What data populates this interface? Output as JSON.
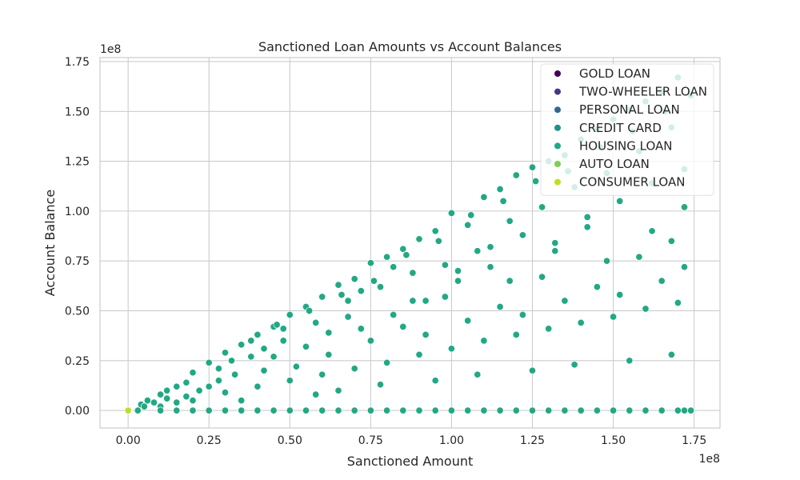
{
  "chart_data": {
    "type": "scatter",
    "title": "Sanctioned Loan Amounts vs Account Balances",
    "xlabel": "Sanctioned Amount",
    "ylabel": "Account Balance",
    "x_offset_text": "1e8",
    "y_offset_text": "1e8",
    "xlim": [
      -0.087,
      1.83
    ],
    "ylim": [
      -0.088,
      1.77
    ],
    "x_ticks": [
      0.0,
      0.25,
      0.5,
      0.75,
      1.0,
      1.25,
      1.5,
      1.75
    ],
    "x_tick_labels": [
      "0.00",
      "0.25",
      "0.50",
      "0.75",
      "1.00",
      "1.25",
      "1.50",
      "1.75"
    ],
    "y_ticks": [
      0.0,
      0.25,
      0.5,
      0.75,
      1.0,
      1.25,
      1.5,
      1.75
    ],
    "y_tick_labels": [
      "0.00",
      "0.25",
      "0.50",
      "0.75",
      "1.00",
      "1.25",
      "1.50",
      "1.75"
    ],
    "grid": true,
    "legend_position": "top-right",
    "point_color": "#ffffff",
    "series": [
      {
        "name": "GOLD LOAN",
        "color": "#440154",
        "points": [
          [
            0.001,
            0.001
          ]
        ]
      },
      {
        "name": "TWO-WHEELER LOAN",
        "color": "#443983",
        "points": [
          [
            0.002,
            0.001
          ]
        ]
      },
      {
        "name": "PERSONAL LOAN",
        "color": "#31688e",
        "points": [
          [
            0.003,
            0.002
          ]
        ]
      },
      {
        "name": "CREDIT CARD",
        "color": "#21918c",
        "points": [
          [
            0.002,
            0.003
          ]
        ]
      },
      {
        "name": "HOUSING LOAN",
        "color": "#22a884",
        "points": [
          [
            0.04,
            0.03
          ],
          [
            0.06,
            0.05
          ],
          [
            0.08,
            0.04
          ],
          [
            0.1,
            0.08
          ],
          [
            0.12,
            0.06
          ],
          [
            0.15,
            0.12
          ],
          [
            0.18,
            0.14
          ],
          [
            0.2,
            0.19
          ],
          [
            0.22,
            0.1
          ],
          [
            0.25,
            0.24
          ],
          [
            0.28,
            0.21
          ],
          [
            0.3,
            0.29
          ],
          [
            0.33,
            0.18
          ],
          [
            0.35,
            0.33
          ],
          [
            0.38,
            0.27
          ],
          [
            0.4,
            0.38
          ],
          [
            0.42,
            0.31
          ],
          [
            0.45,
            0.42
          ],
          [
            0.48,
            0.35
          ],
          [
            0.5,
            0.48
          ],
          [
            0.52,
            0.22
          ],
          [
            0.55,
            0.52
          ],
          [
            0.58,
            0.44
          ],
          [
            0.6,
            0.57
          ],
          [
            0.62,
            0.39
          ],
          [
            0.65,
            0.63
          ],
          [
            0.68,
            0.55
          ],
          [
            0.7,
            0.66
          ],
          [
            0.72,
            0.41
          ],
          [
            0.75,
            0.74
          ],
          [
            0.78,
            0.62
          ],
          [
            0.8,
            0.77
          ],
          [
            0.82,
            0.48
          ],
          [
            0.85,
            0.81
          ],
          [
            0.88,
            0.69
          ],
          [
            0.9,
            0.86
          ],
          [
            0.92,
            0.55
          ],
          [
            0.95,
            0.9
          ],
          [
            0.98,
            0.73
          ],
          [
            1.0,
            0.99
          ],
          [
            1.02,
            0.65
          ],
          [
            1.05,
            0.93
          ],
          [
            1.08,
            0.8
          ],
          [
            1.1,
            1.07
          ],
          [
            1.12,
            0.72
          ],
          [
            1.15,
            1.11
          ],
          [
            1.18,
            0.95
          ],
          [
            1.2,
            1.18
          ],
          [
            1.22,
            0.88
          ],
          [
            1.25,
            1.22
          ],
          [
            1.28,
            1.02
          ],
          [
            1.3,
            1.25
          ],
          [
            1.32,
            0.84
          ],
          [
            1.35,
            1.28
          ],
          [
            1.38,
            1.12
          ],
          [
            1.4,
            1.36
          ],
          [
            1.42,
            0.97
          ],
          [
            1.45,
            1.41
          ],
          [
            1.48,
            1.19
          ],
          [
            1.5,
            1.46
          ],
          [
            1.52,
            1.05
          ],
          [
            1.55,
            1.51
          ],
          [
            1.58,
            1.3
          ],
          [
            1.6,
            1.55
          ],
          [
            1.62,
            1.14
          ],
          [
            1.65,
            1.6
          ],
          [
            1.68,
            1.42
          ],
          [
            1.7,
            1.67
          ],
          [
            1.72,
            1.21
          ],
          [
            1.74,
            1.58
          ],
          [
            0.1,
            0.02
          ],
          [
            0.2,
            0.05
          ],
          [
            0.3,
            0.09
          ],
          [
            0.4,
            0.12
          ],
          [
            0.5,
            0.15
          ],
          [
            0.6,
            0.18
          ],
          [
            0.7,
            0.21
          ],
          [
            0.8,
            0.24
          ],
          [
            0.9,
            0.28
          ],
          [
            1.0,
            0.31
          ],
          [
            1.1,
            0.35
          ],
          [
            1.2,
            0.38
          ],
          [
            1.3,
            0.41
          ],
          [
            1.4,
            0.44
          ],
          [
            1.5,
            0.47
          ],
          [
            1.6,
            0.51
          ],
          [
            1.7,
            0.54
          ],
          [
            0.35,
            0.05
          ],
          [
            0.65,
            0.1
          ],
          [
            0.95,
            0.15
          ],
          [
            1.25,
            0.2
          ],
          [
            1.55,
            0.25
          ],
          [
            0.45,
            0.27
          ],
          [
            0.75,
            0.35
          ],
          [
            1.05,
            0.45
          ],
          [
            1.35,
            0.55
          ],
          [
            1.65,
            0.65
          ],
          [
            0.55,
            0.32
          ],
          [
            0.85,
            0.42
          ],
          [
            1.15,
            0.52
          ],
          [
            1.45,
            0.62
          ],
          [
            1.72,
            0.72
          ],
          [
            0.62,
            0.28
          ],
          [
            0.92,
            0.38
          ],
          [
            1.22,
            0.48
          ],
          [
            1.52,
            0.58
          ],
          [
            0.68,
            0.47
          ],
          [
            0.98,
            0.57
          ],
          [
            1.28,
            0.67
          ],
          [
            1.58,
            0.77
          ],
          [
            0.72,
            0.6
          ],
          [
            1.02,
            0.7
          ],
          [
            1.32,
            0.8
          ],
          [
            1.62,
            0.9
          ],
          [
            0.82,
            0.72
          ],
          [
            1.12,
            0.82
          ],
          [
            1.42,
            0.92
          ],
          [
            1.72,
            1.02
          ],
          [
            0.88,
            0.55
          ],
          [
            1.18,
            0.65
          ],
          [
            1.48,
            0.75
          ],
          [
            1.68,
            0.85
          ],
          [
            0.25,
            0.12
          ],
          [
            0.15,
            0.04
          ],
          [
            0.05,
            0.02
          ],
          [
            0.32,
            0.25
          ],
          [
            0.42,
            0.2
          ],
          [
            0.48,
            0.41
          ],
          [
            0.58,
            0.08
          ],
          [
            0.78,
            0.13
          ],
          [
            1.08,
            0.18
          ],
          [
            1.38,
            0.23
          ],
          [
            1.68,
            0.28
          ],
          [
            0.12,
            0.1
          ],
          [
            0.18,
            0.07
          ],
          [
            0.28,
            0.15
          ],
          [
            0.38,
            0.35
          ],
          [
            0.46,
            0.43
          ],
          [
            0.56,
            0.5
          ],
          [
            0.66,
            0.58
          ],
          [
            0.76,
            0.65
          ],
          [
            0.86,
            0.78
          ],
          [
            0.96,
            0.85
          ],
          [
            1.06,
            0.98
          ],
          [
            1.16,
            1.05
          ],
          [
            1.26,
            1.15
          ],
          [
            1.36,
            1.2
          ],
          [
            1.46,
            1.32
          ],
          [
            1.56,
            1.4
          ],
          [
            1.66,
            1.5
          ],
          [
            0.03,
            0.0
          ],
          [
            0.1,
            0.0
          ],
          [
            0.2,
            0.0
          ],
          [
            0.3,
            0.0
          ],
          [
            0.4,
            0.0
          ],
          [
            0.5,
            0.0
          ],
          [
            0.6,
            0.0
          ],
          [
            0.7,
            0.0
          ],
          [
            0.8,
            0.0
          ],
          [
            0.9,
            0.0
          ],
          [
            1.0,
            0.0
          ],
          [
            1.1,
            0.0
          ],
          [
            1.2,
            0.0
          ],
          [
            1.3,
            0.0
          ],
          [
            1.4,
            0.0
          ],
          [
            1.5,
            0.0
          ],
          [
            1.6,
            0.0
          ],
          [
            1.7,
            0.0
          ],
          [
            1.74,
            0.0
          ],
          [
            0.15,
            0.0
          ],
          [
            0.25,
            0.0
          ],
          [
            0.35,
            0.0
          ],
          [
            0.45,
            0.0
          ],
          [
            0.55,
            0.0
          ],
          [
            0.65,
            0.0
          ],
          [
            0.75,
            0.0
          ],
          [
            0.85,
            0.0
          ],
          [
            0.95,
            0.0
          ],
          [
            1.05,
            0.0
          ],
          [
            1.15,
            0.0
          ],
          [
            1.25,
            0.0
          ],
          [
            1.35,
            0.0
          ],
          [
            1.45,
            0.0
          ],
          [
            1.55,
            0.0
          ],
          [
            1.65,
            0.0
          ],
          [
            1.72,
            0.0
          ]
        ]
      },
      {
        "name": "AUTO LOAN",
        "color": "#7ad151",
        "points": [
          [
            0.001,
            0.002
          ]
        ]
      },
      {
        "name": "CONSUMER LOAN",
        "color": "#bddf26",
        "points": [
          [
            0.0,
            0.0
          ]
        ]
      }
    ]
  }
}
